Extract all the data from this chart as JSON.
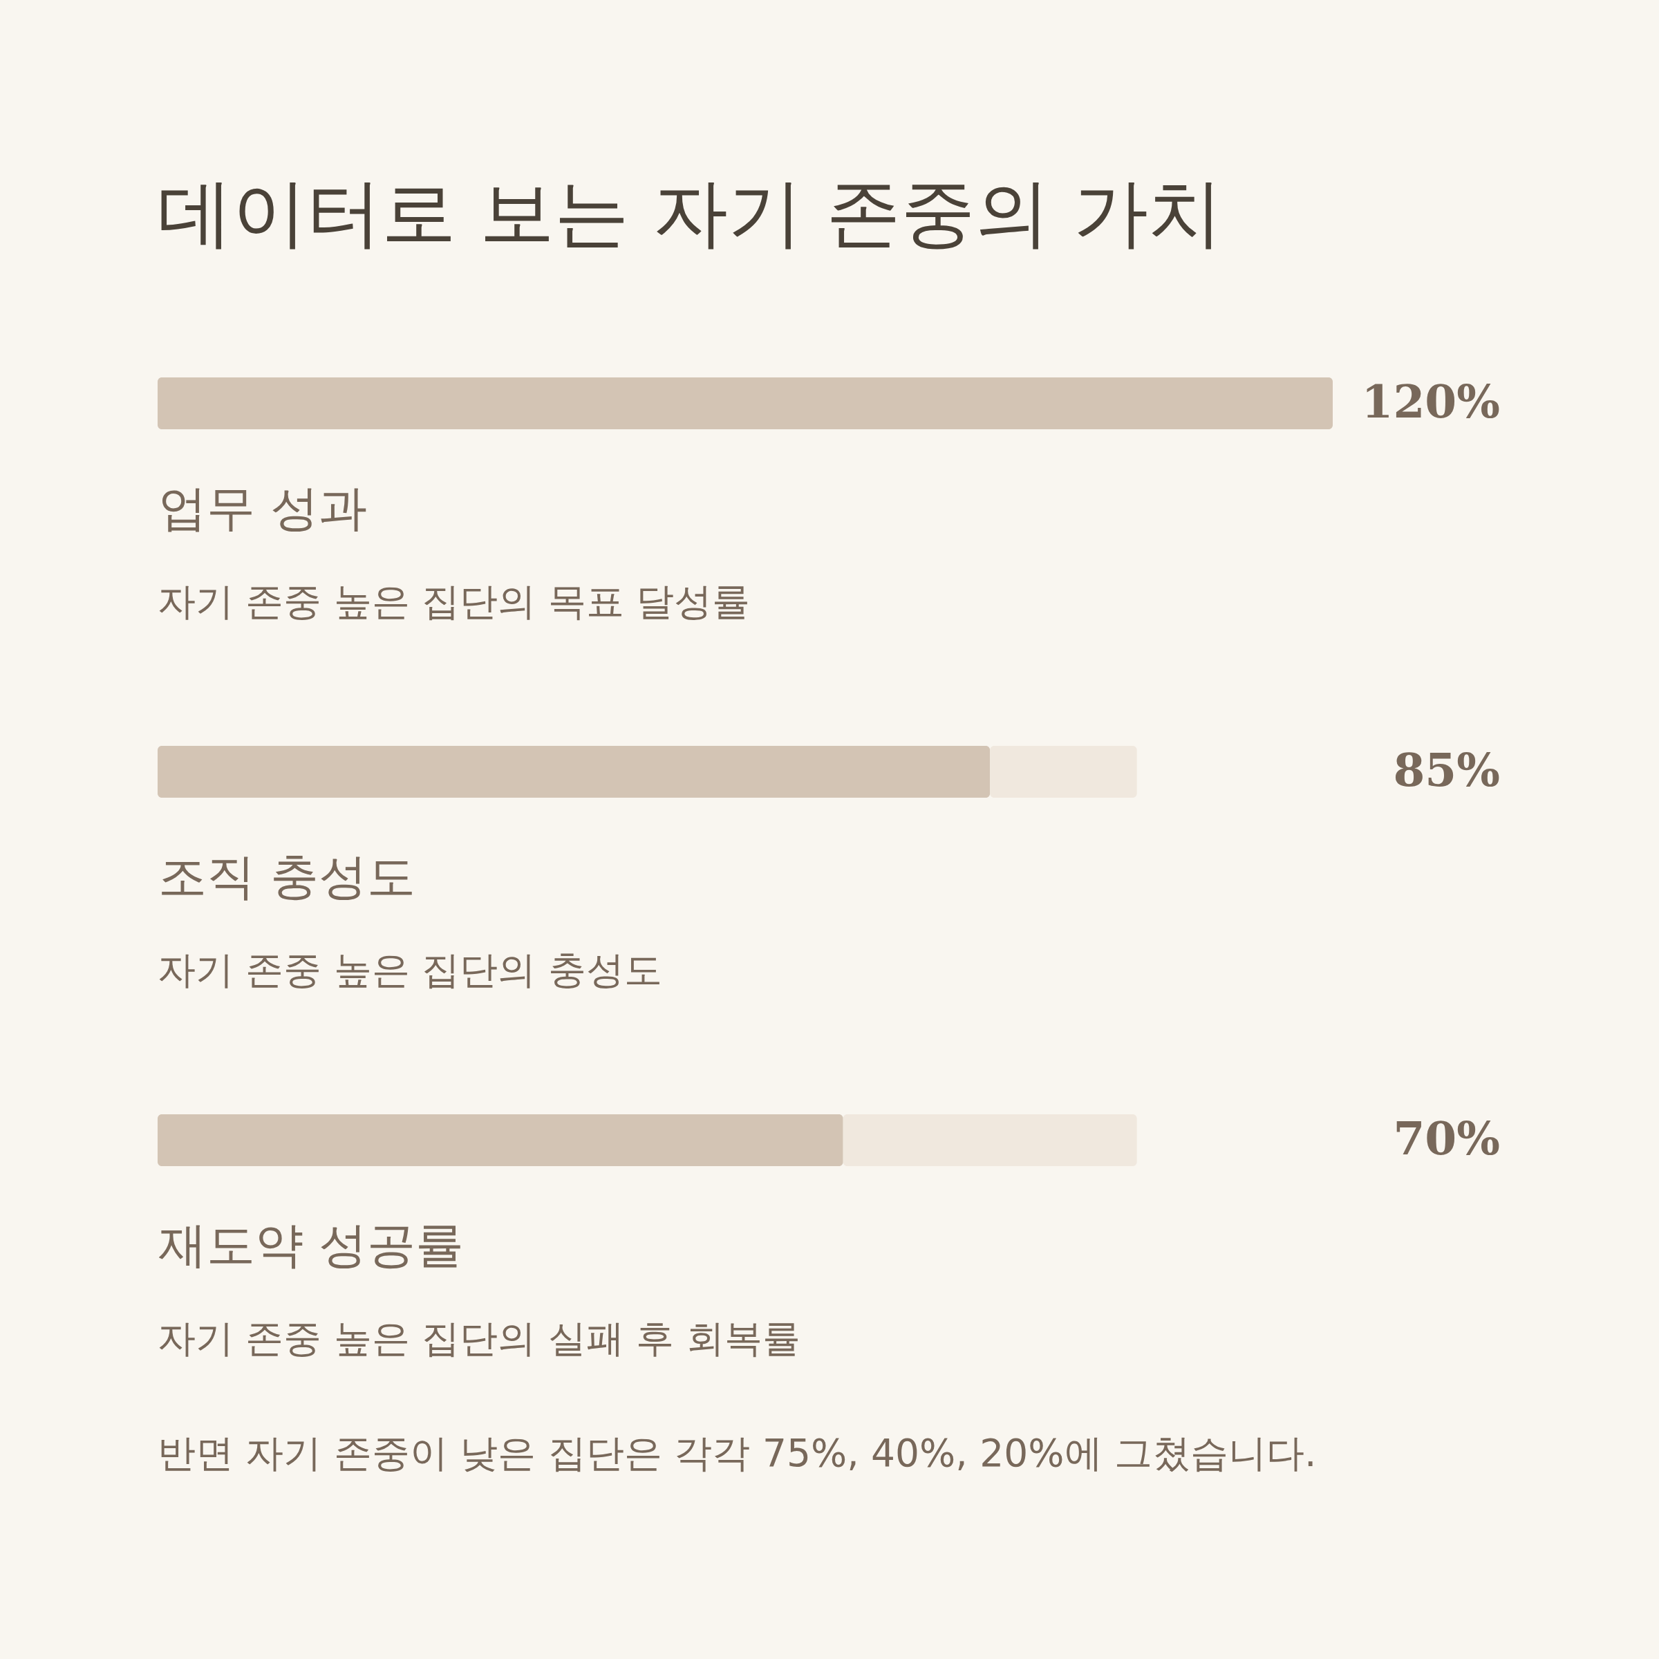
{
  "chart_data": {
    "type": "bar",
    "orientation": "horizontal",
    "stacked": true,
    "title": "데이터로 보는 자기 존중의 가치",
    "categories": [
      "업무 성과",
      "조직 충성도",
      "재도약 성공률"
    ],
    "series": [
      {
        "color": "#d3c4b4",
        "values": [
          120,
          85,
          70
        ],
        "value_labels": [
          "120%",
          "85%",
          "70%"
        ]
      },
      {
        "color": "#f0e8de",
        "values": [
          null,
          15,
          30
        ]
      }
    ],
    "xlim": [
      0,
      120
    ],
    "tick_labels": "y",
    "grid": false,
    "annotations": [
      "자기 존중 높은 집단의 목표 달성률",
      "자기 존중 높은 집단의 충성도",
      "자기 존중 높은 집단의 실패 후 회복률",
      "반면 자기 존중이 낮은 집단은 각각 75%, 40%, 20%에 그쳤습니다."
    ]
  }
}
